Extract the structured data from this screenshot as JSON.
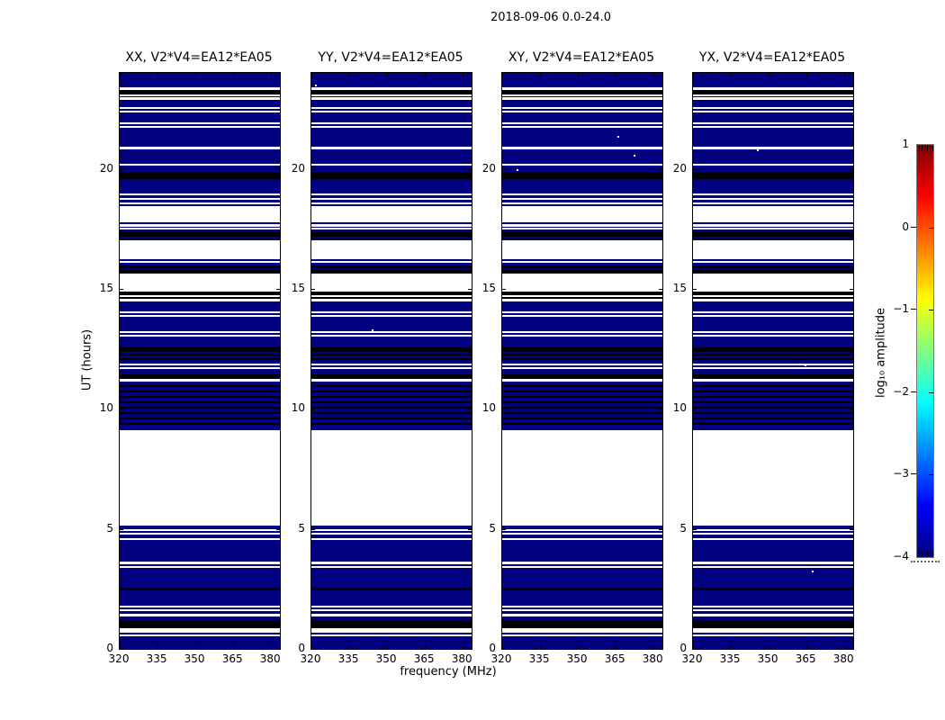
{
  "figure": {
    "suptitle": "2018-09-06 0.0-24.0",
    "background": "#ffffff"
  },
  "chart_data": {
    "type": "heatmap",
    "description": "Four polarization-product dynamic spectra (UT hours vs frequency) for baseline V2*V4=EA12*EA05 with shared horizontal flagging stripes; colors follow a jet colormap of log10 amplitude",
    "panels": [
      {
        "label": "XX",
        "title": "XX, V2*V4=EA12*EA05"
      },
      {
        "label": "YY",
        "title": "YY, V2*V4=EA12*EA05"
      },
      {
        "label": "XY",
        "title": "XY, V2*V4=EA12*EA05"
      },
      {
        "label": "YX",
        "title": "YX, V2*V4=EA12*EA05"
      }
    ],
    "x_axis": {
      "label": "frequency (MHz)",
      "range": [
        320,
        383.5
      ],
      "ticks": [
        320,
        335,
        350,
        365,
        380
      ],
      "tick_labels": [
        "320",
        "335",
        "350",
        "365",
        "380"
      ]
    },
    "y_axis": {
      "label": "UT (hours)",
      "range": [
        0,
        24
      ],
      "ticks": [
        0,
        5,
        10,
        15,
        20
      ],
      "tick_labels": [
        "0",
        "5",
        "10",
        "15",
        "20"
      ]
    },
    "value_colors": {
      "base_low_amplitude": "#000080",
      "flagged_blank": "#ffffff",
      "high_amplitude_dark": "#000000"
    },
    "stripes_hours": {
      "comment": "horizontal bands [top_hour, bottom_hour] drawn over navy base; identical in all four panels",
      "white": [
        [
          23.4,
          23.29
        ],
        [
          23.1,
          23.02
        ],
        [
          22.97,
          22.86
        ],
        [
          22.58,
          22.5
        ],
        [
          22.43,
          22.35
        ],
        [
          21.94,
          21.86
        ],
        [
          21.79,
          21.71
        ],
        [
          20.93,
          20.82
        ],
        [
          20.21,
          20.14
        ],
        [
          18.98,
          18.9
        ],
        [
          18.79,
          18.71
        ],
        [
          18.6,
          18.53
        ],
        [
          18.45,
          17.78
        ],
        [
          17.7,
          17.6
        ],
        [
          17.55,
          17.48
        ],
        [
          17.02,
          16.24
        ],
        [
          16.17,
          16.09
        ],
        [
          15.64,
          14.89
        ],
        [
          14.74,
          14.66
        ],
        [
          14.59,
          14.48
        ],
        [
          14.06,
          13.99
        ],
        [
          13.91,
          13.84
        ],
        [
          13.24,
          13.16
        ],
        [
          13.09,
          13.01
        ],
        [
          11.89,
          11.81
        ],
        [
          11.74,
          11.66
        ],
        [
          11.25,
          11.14
        ],
        [
          9.11,
          5.13
        ],
        [
          5.0,
          4.93
        ],
        [
          4.83,
          4.75
        ],
        [
          4.63,
          4.55
        ],
        [
          3.63,
          3.54
        ],
        [
          3.45,
          3.37
        ],
        [
          1.81,
          1.73
        ],
        [
          1.64,
          1.56
        ],
        [
          1.45,
          1.35
        ],
        [
          0.87,
          0.69
        ],
        [
          0.6,
          0.53
        ]
      ],
      "black": [
        [
          23.29,
          23.1
        ],
        [
          19.88,
          19.58
        ],
        [
          17.36,
          17.18
        ],
        [
          17.1,
          17.04
        ],
        [
          15.98,
          15.86
        ],
        [
          15.79,
          15.66
        ],
        [
          14.89,
          14.74
        ],
        [
          14.66,
          14.59
        ],
        [
          12.56,
          12.38
        ],
        [
          12.3,
          12.23
        ],
        [
          12.11,
          12.04
        ],
        [
          11.44,
          11.25
        ],
        [
          10.99,
          10.91
        ],
        [
          10.76,
          10.69
        ],
        [
          10.54,
          10.46
        ],
        [
          10.31,
          10.24
        ],
        [
          10.09,
          10.01
        ],
        [
          9.86,
          9.79
        ],
        [
          9.64,
          9.56
        ],
        [
          9.41,
          9.34
        ],
        [
          2.56,
          2.45
        ],
        [
          1.19,
          0.87
        ]
      ]
    },
    "specks": [
      {
        "panel": 1,
        "fx": 0.022,
        "hour": 23.5
      },
      {
        "panel": 1,
        "fx": 0.376,
        "hour": 13.31
      },
      {
        "panel": 2,
        "fx": 0.09,
        "hour": 19.99
      },
      {
        "panel": 2,
        "fx": 0.72,
        "hour": 21.37
      },
      {
        "panel": 2,
        "fx": 0.82,
        "hour": 20.59
      },
      {
        "panel": 3,
        "fx": 0.4,
        "hour": 20.81
      },
      {
        "panel": 3,
        "fx": 0.697,
        "hour": 11.85
      },
      {
        "panel": 3,
        "fx": 0.74,
        "hour": 3.26
      }
    ],
    "colorbar": {
      "label": "log₁₀ amplitude",
      "range": [
        -4,
        1
      ],
      "ticks": [
        1,
        0,
        -1,
        -2,
        -3,
        -4
      ],
      "tick_labels": [
        "1",
        "0",
        "−1",
        "−2",
        "−3",
        "−4"
      ],
      "colormap": "jet",
      "gradient_bottom_to_top": [
        "#000080",
        "#0000ff",
        "#00ffff",
        "#ffff00",
        "#ff0000",
        "#800000"
      ],
      "gradient_stops": [
        0,
        0.125,
        0.375,
        0.625,
        0.875,
        1
      ]
    }
  }
}
